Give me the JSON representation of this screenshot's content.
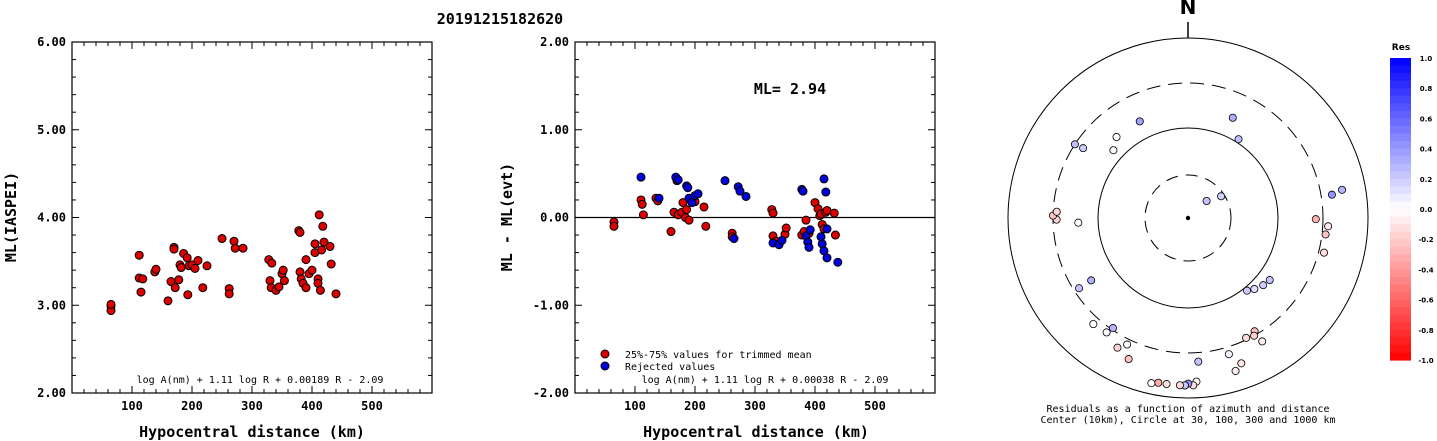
{
  "page_title": "20191215182620",
  "chart_data": [
    {
      "type": "scatter",
      "name": "ml-vs-distance",
      "xlabel": "Hypocentral distance (km)",
      "ylabel": "ML(IASPEI)",
      "xlim": [
        0,
        600
      ],
      "ylim": [
        2.0,
        6.0
      ],
      "xticks": [
        "100",
        "200",
        "300",
        "400",
        "500"
      ],
      "yticks": [
        "2.00",
        "3.00",
        "4.00",
        "5.00",
        "6.00"
      ],
      "formula": "log A(nm) + 1.11 log R + 0.00189 R - 2.09",
      "series": [
        {
          "color": "#dd0000",
          "points": [
            [
              65,
              2.99
            ],
            [
              65,
              2.94
            ],
            [
              65,
              3.01
            ],
            [
              112,
              3.57
            ],
            [
              112,
              3.31
            ],
            [
              115,
              3.15
            ],
            [
              118,
              3.3
            ],
            [
              138,
              3.38
            ],
            [
              140,
              3.41
            ],
            [
              160,
              3.05
            ],
            [
              165,
              3.27
            ],
            [
              170,
              3.66
            ],
            [
              170,
              3.64
            ],
            [
              172,
              3.2
            ],
            [
              178,
              3.29
            ],
            [
              180,
              3.46
            ],
            [
              182,
              3.43
            ],
            [
              186,
              3.59
            ],
            [
              192,
              3.54
            ],
            [
              193,
              3.12
            ],
            [
              195,
              3.45
            ],
            [
              200,
              3.46
            ],
            [
              205,
              3.42
            ],
            [
              210,
              3.51
            ],
            [
              218,
              3.2
            ],
            [
              225,
              3.45
            ],
            [
              250,
              3.76
            ],
            [
              262,
              3.19
            ],
            [
              262,
              3.13
            ],
            [
              270,
              3.73
            ],
            [
              272,
              3.65
            ],
            [
              285,
              3.65
            ],
            [
              328,
              3.52
            ],
            [
              330,
              3.28
            ],
            [
              332,
              3.2
            ],
            [
              333,
              3.48
            ],
            [
              340,
              3.17
            ],
            [
              345,
              3.21
            ],
            [
              350,
              3.36
            ],
            [
              352,
              3.4
            ],
            [
              354,
              3.28
            ],
            [
              378,
              3.85
            ],
            [
              380,
              3.83
            ],
            [
              380,
              3.38
            ],
            [
              382,
              3.3
            ],
            [
              385,
              3.25
            ],
            [
              390,
              3.52
            ],
            [
              390,
              3.2
            ],
            [
              395,
              3.36
            ],
            [
              400,
              3.4
            ],
            [
              405,
              3.6
            ],
            [
              405,
              3.7
            ],
            [
              410,
              3.3
            ],
            [
              410,
              3.25
            ],
            [
              412,
              4.03
            ],
            [
              414,
              3.17
            ],
            [
              416,
              3.63
            ],
            [
              418,
              3.9
            ],
            [
              420,
              3.72
            ],
            [
              430,
              3.67
            ],
            [
              432,
              3.47
            ],
            [
              440,
              3.13
            ]
          ]
        }
      ]
    },
    {
      "type": "scatter",
      "name": "residual-vs-distance",
      "xlabel": "Hypocentral distance (km)",
      "ylabel": "ML - ML(evt)",
      "xlim": [
        0,
        600
      ],
      "ylim": [
        -2.0,
        2.0
      ],
      "xticks": [
        "100",
        "200",
        "300",
        "400",
        "500"
      ],
      "yticks": [
        "-2.00",
        "-1.00",
        "0.00",
        "1.00",
        "2.00"
      ],
      "ml_label": "ML= 2.94",
      "formula": "log A(nm) + 1.11 log R + 0.00038 R - 2.09",
      "legend": [
        "25%-75% values for trimmed mean",
        "Rejected values"
      ],
      "legend_position": "bottom-left",
      "series": [
        {
          "name": "25%-75% values for trimmed mean",
          "color": "#dd0000",
          "points": [
            [
              65,
              -0.05
            ],
            [
              65,
              -0.1
            ],
            [
              110,
              0.2
            ],
            [
              112,
              0.15
            ],
            [
              114,
              0.03
            ],
            [
              135,
              0.22
            ],
            [
              138,
              0.19
            ],
            [
              160,
              -0.16
            ],
            [
              165,
              0.06
            ],
            [
              170,
              0.42
            ],
            [
              172,
              0.03
            ],
            [
              178,
              0.06
            ],
            [
              180,
              0.17
            ],
            [
              184,
              0.0
            ],
            [
              186,
              0.09
            ],
            [
              190,
              -0.03
            ],
            [
              195,
              0.21
            ],
            [
              200,
              0.18
            ],
            [
              215,
              0.12
            ],
            [
              218,
              -0.1
            ],
            [
              262,
              -0.18
            ],
            [
              262,
              -0.22
            ],
            [
              328,
              0.09
            ],
            [
              330,
              0.05
            ],
            [
              330,
              -0.21
            ],
            [
              335,
              -0.27
            ],
            [
              350,
              -0.19
            ],
            [
              352,
              -0.12
            ],
            [
              378,
              -0.2
            ],
            [
              382,
              -0.16
            ],
            [
              385,
              -0.03
            ],
            [
              390,
              -0.18
            ],
            [
              400,
              0.17
            ],
            [
              405,
              0.1
            ],
            [
              408,
              0.02
            ],
            [
              410,
              0.04
            ],
            [
              412,
              -0.08
            ],
            [
              415,
              -0.13
            ],
            [
              418,
              0.06
            ],
            [
              420,
              0.08
            ],
            [
              432,
              0.05
            ],
            [
              434,
              -0.2
            ]
          ]
        },
        {
          "name": "Rejected values",
          "color": "#0000dd",
          "points": [
            [
              110,
              0.46
            ],
            [
              140,
              0.22
            ],
            [
              168,
              0.46
            ],
            [
              172,
              0.43
            ],
            [
              186,
              0.36
            ],
            [
              188,
              0.34
            ],
            [
              190,
              0.22
            ],
            [
              195,
              0.17
            ],
            [
              200,
              0.25
            ],
            [
              205,
              0.27
            ],
            [
              250,
              0.42
            ],
            [
              265,
              -0.24
            ],
            [
              272,
              0.35
            ],
            [
              275,
              0.3
            ],
            [
              285,
              0.24
            ],
            [
              330,
              -0.29
            ],
            [
              340,
              -0.31
            ],
            [
              345,
              -0.26
            ],
            [
              378,
              0.32
            ],
            [
              380,
              0.3
            ],
            [
              385,
              -0.21
            ],
            [
              388,
              -0.28
            ],
            [
              390,
              -0.34
            ],
            [
              392,
              -0.14
            ],
            [
              410,
              -0.22
            ],
            [
              412,
              -0.3
            ],
            [
              415,
              -0.38
            ],
            [
              415,
              0.44
            ],
            [
              418,
              0.29
            ],
            [
              420,
              -0.46
            ],
            [
              420,
              -0.13
            ],
            [
              438,
              -0.51
            ]
          ]
        }
      ]
    },
    {
      "type": "scatter",
      "name": "polar-residuals",
      "north_label": "N",
      "caption_line1": "Residuals as a function of azimuth and distance",
      "caption_line2": "Center (10km), Circle at 30, 100, 300 and 1000 km",
      "rings_km": [
        10,
        30,
        100,
        300,
        1000
      ],
      "colorbar_title": "Res",
      "colorbar_ticks": [
        "1.0",
        "0.8",
        "0.6",
        "0.4",
        "0.2",
        "0.0",
        "-0.2",
        "-0.4",
        "-0.6",
        "-0.8",
        "-1.0"
      ],
      "points": [
        [
          0.42,
          0.61,
          0.32
        ],
        [
          0.57,
          0.52,
          0.26
        ],
        [
          0.83,
          0.14,
          0.23
        ],
        [
          0.99,
          0.22,
          0.18
        ],
        [
          1.39,
          0.87,
          0.29
        ],
        [
          1.41,
          0.81,
          0.42
        ],
        [
          1.58,
          0.71,
          -0.31
        ],
        [
          1.63,
          0.78,
          -0.09
        ],
        [
          1.69,
          0.77,
          -0.24
        ],
        [
          1.82,
          0.78,
          -0.14
        ],
        [
          2.22,
          0.57,
          0.23
        ],
        [
          2.3,
          0.56,
          0.2
        ],
        [
          2.39,
          0.54,
          0.12
        ],
        [
          2.46,
          0.52,
          0.2
        ],
        [
          2.6,
          0.8,
          -0.06
        ],
        [
          2.61,
          0.73,
          -0.25
        ],
        [
          2.63,
          0.75,
          -0.19
        ],
        [
          2.69,
          0.74,
          -0.13
        ],
        [
          2.79,
          0.86,
          -0.11
        ],
        [
          2.85,
          0.79,
          0.04
        ],
        [
          2.84,
          0.89,
          -0.07
        ],
        [
          3.07,
          0.8,
          0.24
        ],
        [
          3.09,
          0.91,
          -0.02
        ],
        [
          3.11,
          0.93,
          -0.13
        ],
        [
          3.14,
          0.92,
          0.42
        ],
        [
          3.16,
          0.93,
          -0.02
        ],
        [
          3.16,
          0.93,
          0.21
        ],
        [
          3.19,
          0.93,
          -0.16
        ],
        [
          3.27,
          0.93,
          -0.11
        ],
        [
          3.32,
          0.93,
          -0.33
        ],
        [
          3.36,
          0.94,
          0.0
        ],
        [
          3.54,
          0.85,
          -0.24
        ],
        [
          3.59,
          0.78,
          0.02
        ],
        [
          3.64,
          0.82,
          -0.18
        ],
        [
          3.74,
          0.74,
          0.29
        ],
        [
          3.76,
          0.78,
          0.02
        ],
        [
          3.87,
          0.79,
          0.0
        ],
        [
          4.14,
          0.64,
          0.31
        ],
        [
          4.14,
          0.72,
          0.24
        ],
        [
          4.67,
          0.61,
          0.0
        ],
        [
          4.7,
          0.73,
          -0.18
        ],
        [
          4.73,
          0.75,
          -0.23
        ],
        [
          4.76,
          0.73,
          -0.16
        ],
        [
          5.29,
          0.75,
          0.25
        ],
        [
          5.3,
          0.7,
          0.19
        ],
        [
          5.45,
          0.56,
          0.03
        ],
        [
          5.56,
          0.6,
          0.0
        ],
        [
          5.82,
          0.6,
          0.36
        ]
      ]
    }
  ]
}
